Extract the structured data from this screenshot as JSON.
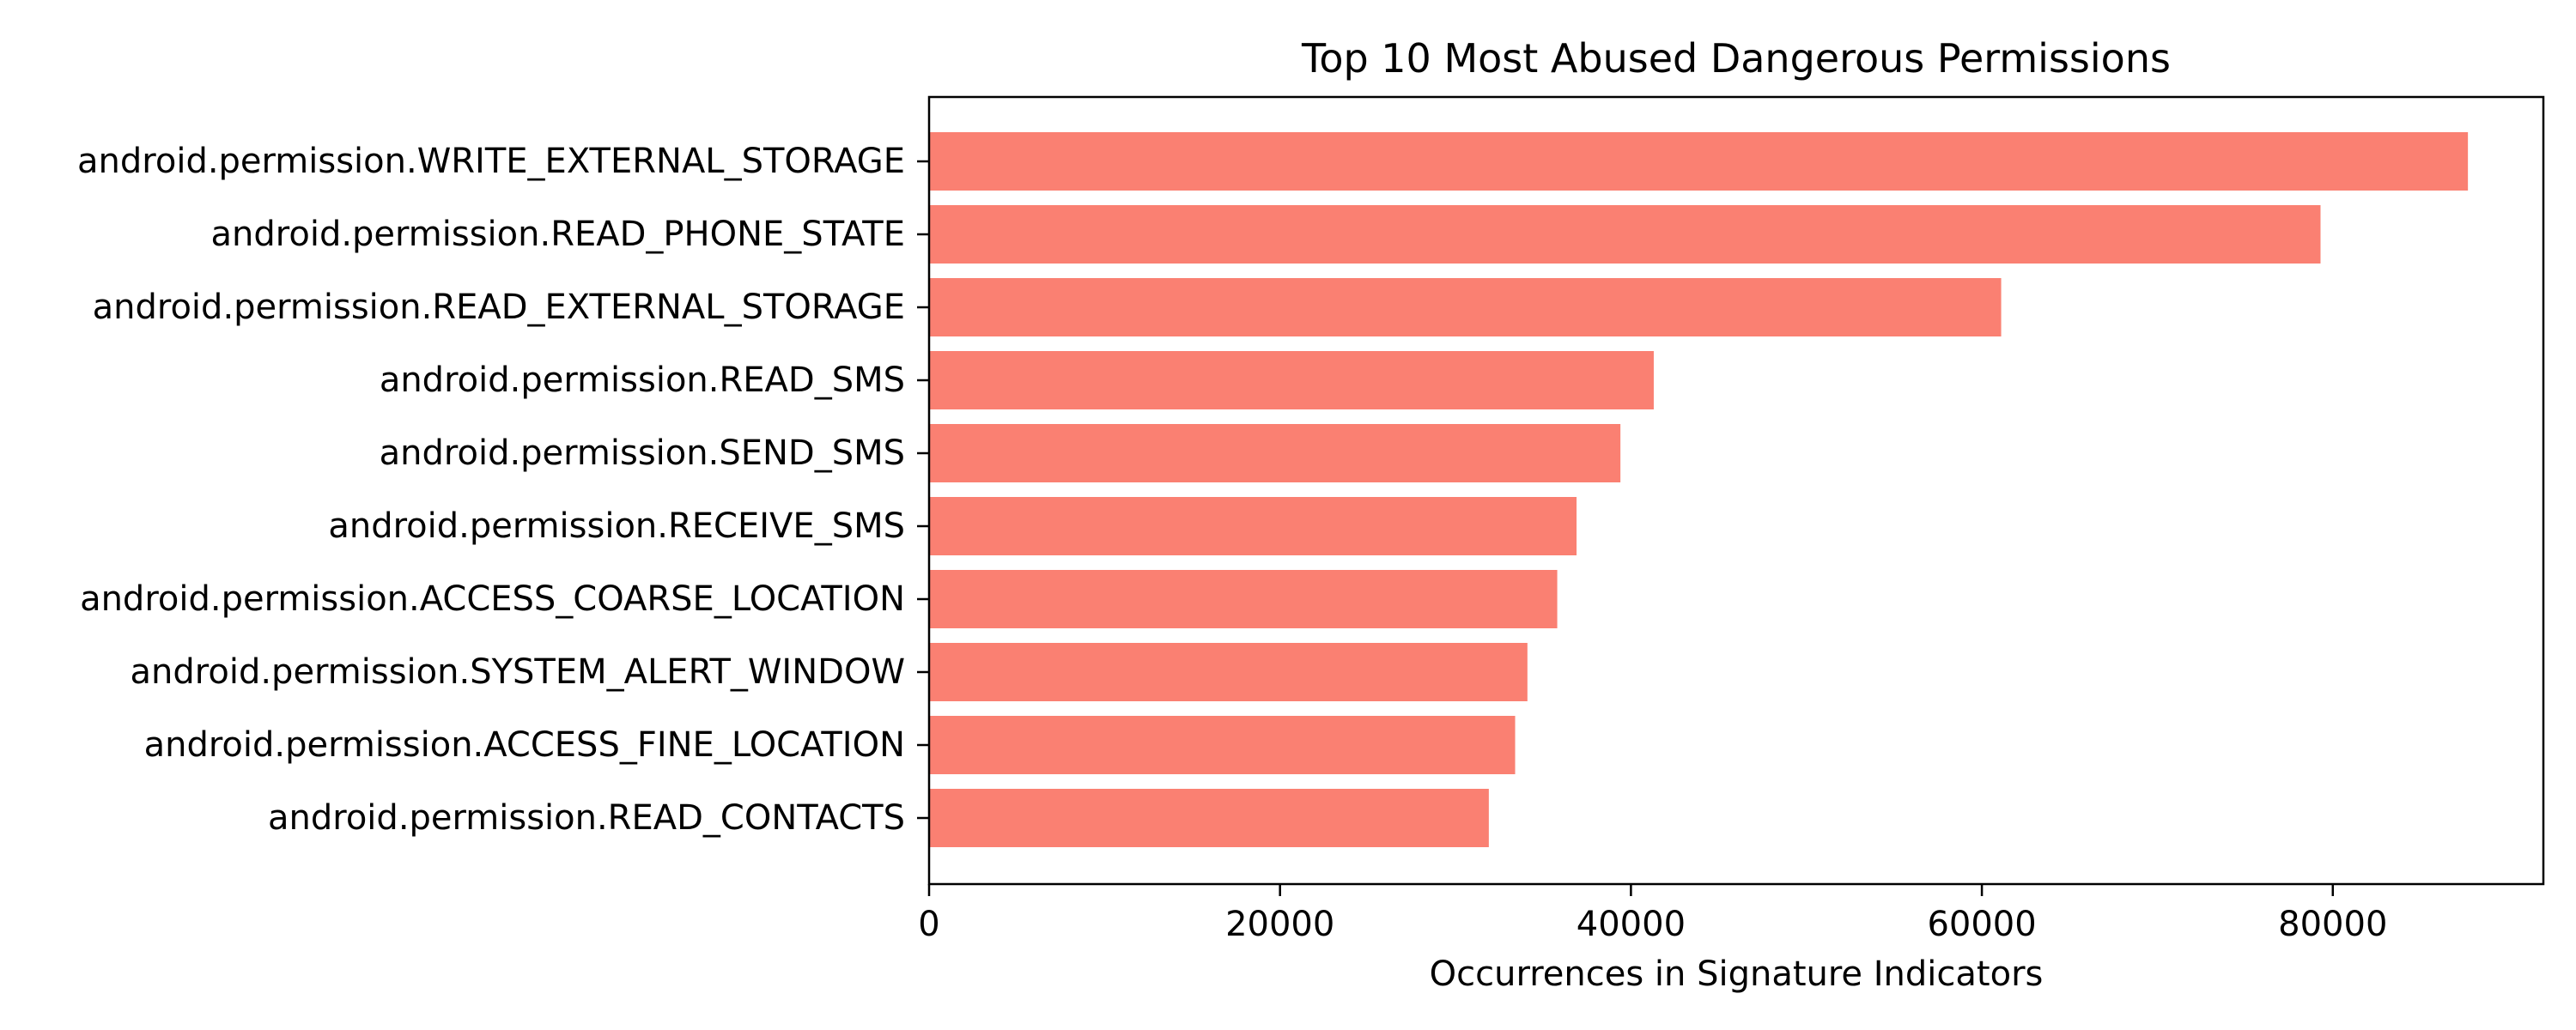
{
  "chart_data": {
    "type": "bar",
    "orientation": "horizontal",
    "title": "Top 10 Most Abused Dangerous Permissions",
    "xlabel": "Occurrences in Signature Indicators",
    "ylabel": "",
    "categories": [
      "android.permission.WRITE_EXTERNAL_STORAGE",
      "android.permission.READ_PHONE_STATE",
      "android.permission.READ_EXTERNAL_STORAGE",
      "android.permission.READ_SMS",
      "android.permission.SEND_SMS",
      "android.permission.RECEIVE_SMS",
      "android.permission.ACCESS_COARSE_LOCATION",
      "android.permission.SYSTEM_ALERT_WINDOW",
      "android.permission.ACCESS_FINE_LOCATION",
      "android.permission.READ_CONTACTS"
    ],
    "values": [
      87700,
      79300,
      61100,
      41300,
      39400,
      36900,
      35800,
      34100,
      33400,
      31900
    ],
    "xlim": [
      0,
      92000
    ],
    "xticks": [
      0,
      20000,
      40000,
      60000,
      80000
    ],
    "xtick_labels": [
      "0",
      "20000",
      "40000",
      "60000",
      "80000"
    ],
    "bar_color": "#fa8072",
    "grid": false,
    "legend": "none"
  }
}
